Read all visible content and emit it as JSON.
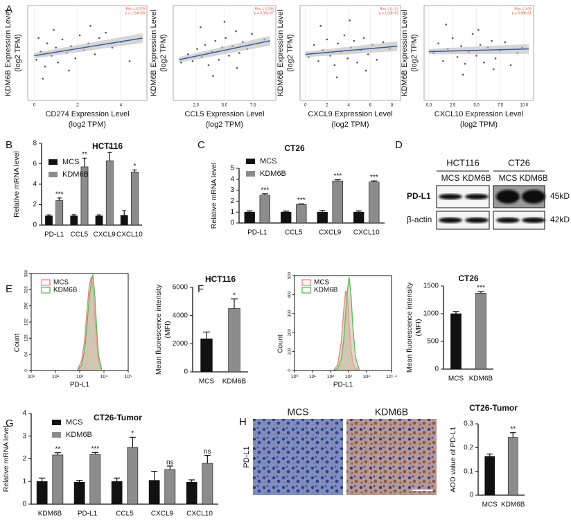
{
  "chart_data": [
    {
      "type": "scatter",
      "panel": "A",
      "xlabel": [
        "CD274 Expression Level",
        "(log2 TPM)"
      ],
      "ylabel": [
        "KDM6B Expression Level",
        "(log2 TPM)"
      ],
      "annotation": [
        "Rho = 0.278",
        "p = 1.24e-09"
      ],
      "xlim": [
        -0.3,
        5.2
      ],
      "xticks": [
        0,
        2,
        4
      ],
      "ylim": [
        0,
        7
      ],
      "color": "#3b5a9a",
      "point_color": "#555555",
      "x": [
        0.1,
        0.3,
        0.5,
        0.6,
        0.8,
        1.0,
        1.1,
        1.3,
        1.5,
        1.7,
        1.9,
        2.1,
        2.3,
        2.5,
        2.8,
        3.0,
        3.3,
        3.6,
        4.0,
        4.4,
        0.4,
        0.9,
        1.6,
        2.6,
        0.2
      ],
      "y": [
        3.0,
        3.6,
        2.5,
        4.2,
        3.3,
        3.9,
        2.8,
        4.5,
        3.5,
        4.0,
        3.1,
        4.8,
        3.7,
        4.2,
        3.4,
        4.6,
        5.0,
        3.9,
        4.3,
        2.9,
        1.6,
        5.2,
        2.2,
        5.5,
        4.6
      ],
      "fit": {
        "x": [
          0,
          5
        ],
        "y": [
          3.3,
          4.6
        ]
      }
    },
    {
      "type": "scatter",
      "xlabel": [
        "CCL5 Expression Level",
        "(log2 TPM)"
      ],
      "ylabel": [
        "KDM6B Expression Level",
        "(log2 TPM)"
      ],
      "annotation": [
        "Rho = 0.236",
        "p = 3.05e-07"
      ],
      "xlim": [
        0.5,
        9.5
      ],
      "xticks": [
        2.5,
        {
          "value": 5,
          "label": "5.0"
        },
        7.5
      ],
      "ylim": [
        0,
        7
      ],
      "color": "#3b5a9a",
      "point_color": "#555555",
      "x": [
        1.2,
        1.8,
        2.2,
        2.6,
        3.0,
        3.3,
        3.6,
        3.9,
        4.2,
        4.5,
        4.8,
        5.1,
        5.4,
        5.7,
        6.0,
        6.3,
        6.6,
        7.0,
        7.4,
        7.9,
        2.9,
        4.0,
        5.0,
        6.1,
        8.5
      ],
      "y": [
        2.8,
        3.4,
        2.9,
        3.8,
        3.2,
        4.1,
        2.6,
        3.6,
        4.4,
        3.0,
        3.9,
        4.6,
        3.3,
        4.0,
        5.1,
        3.5,
        4.3,
        3.8,
        4.9,
        4.2,
        5.4,
        1.8,
        5.8,
        2.4,
        4.5
      ],
      "fit": {
        "x": [
          1,
          9
        ],
        "y": [
          3.0,
          4.4
        ]
      }
    },
    {
      "type": "scatter",
      "xlabel": [
        "CXCL9 Expression Level",
        "(log2 TPM)"
      ],
      "ylabel": [
        "KDM6B Expression Level",
        "(log2 TPM)"
      ],
      "annotation": [
        "Rho = 0.113",
        "p = 1.03e-02"
      ],
      "xlim": [
        -0.5,
        8.8
      ],
      "xticks": [
        0,
        2,
        4,
        6,
        8
      ],
      "ylim": [
        0,
        7
      ],
      "color": "#3b5a9a",
      "point_color": "#555555",
      "x": [
        0.3,
        0.8,
        1.2,
        1.6,
        2.0,
        2.3,
        2.7,
        3.0,
        3.3,
        3.6,
        3.9,
        4.2,
        4.5,
        4.8,
        5.1,
        5.4,
        5.8,
        6.2,
        6.6,
        7.2,
        1.4,
        2.9,
        4.1,
        5.6,
        7.8
      ],
      "y": [
        3.2,
        4.1,
        2.9,
        3.7,
        4.5,
        3.3,
        2.6,
        4.2,
        3.6,
        4.8,
        3.1,
        3.9,
        4.4,
        2.8,
        3.7,
        4.6,
        3.4,
        4.1,
        3.0,
        4.3,
        5.5,
        1.7,
        5.9,
        2.2,
        3.8
      ],
      "fit": {
        "x": [
          0,
          8.5
        ],
        "y": [
          3.4,
          4.0
        ]
      }
    },
    {
      "type": "scatter",
      "xlabel": [
        "CXCL10 Expression Level",
        "(log2 TPM)"
      ],
      "ylabel": [
        "KDM6B Expression Level",
        "(log2 TPM)"
      ],
      "annotation": [
        "Rho = 0.06",
        "p = 5.99e-01"
      ],
      "xlim": [
        -0.5,
        11
      ],
      "xticks": [
        {
          "value": 0,
          "label": "0.0"
        },
        2.5,
        {
          "value": 5,
          "label": "5.0"
        },
        7.5,
        {
          "value": 10,
          "label": "10.0"
        }
      ],
      "ylim": [
        0,
        7
      ],
      "color": "#3b5a9a",
      "point_color": "#555555",
      "x": [
        0.5,
        1.0,
        1.5,
        2.0,
        2.5,
        3.0,
        3.4,
        3.8,
        4.2,
        4.6,
        5.0,
        5.4,
        5.8,
        6.2,
        6.6,
        7.0,
        7.5,
        8.0,
        8.6,
        9.3,
        1.8,
        3.6,
        5.2,
        6.8,
        9.8
      ],
      "y": [
        3.5,
        4.2,
        2.9,
        3.8,
        4.6,
        3.2,
        4.0,
        2.7,
        3.6,
        4.9,
        3.3,
        4.1,
        2.8,
        3.9,
        4.4,
        3.1,
        3.7,
        4.3,
        2.6,
        3.5,
        5.6,
        1.9,
        5.2,
        2.3,
        3.9
      ],
      "fit": {
        "x": [
          0,
          10.5
        ],
        "y": [
          3.6,
          3.8
        ]
      }
    },
    {
      "type": "bar",
      "panel": "B",
      "title": "HCT116",
      "ylabel": [
        "Relative mRNA level"
      ],
      "categories": [
        "PD-L1",
        "CCL5",
        "CXCL9",
        "CXCL10"
      ],
      "ylim": [
        0,
        8
      ],
      "yticks": [
        0,
        2,
        4,
        6,
        8
      ],
      "series": [
        {
          "name": "MCS",
          "color": "#111111",
          "values": [
            0.9,
            0.9,
            0.9,
            0.95
          ],
          "errors": [
            0.1,
            0.12,
            0.1,
            0.45
          ]
        },
        {
          "name": "KDM6B",
          "color": "#8c8c8c",
          "values": [
            2.4,
            5.7,
            6.3,
            5.2
          ],
          "errors": [
            0.25,
            0.85,
            0.8,
            0.2
          ]
        }
      ],
      "significance": [
        "***",
        "**",
        "*",
        "*"
      ]
    },
    {
      "type": "bar",
      "panel": "C",
      "title": "CT26",
      "ylabel": [
        "Relative mRNA level"
      ],
      "categories": [
        "PD-L1",
        "CCL5",
        "CXCL9",
        "CXCL10"
      ],
      "ylim": [
        0,
        5
      ],
      "yticks": [
        0,
        1,
        2,
        3,
        4,
        5
      ],
      "series": [
        {
          "name": "MCS",
          "color": "#111111",
          "values": [
            1,
            1,
            1,
            1
          ],
          "errors": [
            0.1,
            0.08,
            0.15,
            0.1
          ]
        },
        {
          "name": "KDM6B",
          "color": "#8c8c8c",
          "values": [
            2.55,
            1.7,
            3.85,
            3.75
          ],
          "errors": [
            0.12,
            0.05,
            0.1,
            0.1
          ]
        }
      ],
      "significance": [
        "***",
        "***",
        "***",
        "***"
      ]
    },
    {
      "type": "area",
      "panel": "E",
      "xlabel": "PD-L1",
      "ylabel": "Count",
      "log_x": true,
      "xlim": [
        10,
        100000
      ],
      "xticks": [
        {
          "value": 10,
          "label": "10¹"
        },
        {
          "value": 100,
          "label": "10²"
        },
        {
          "value": 1000,
          "label": "10³"
        },
        {
          "value": 10000,
          "label": "10⁴"
        },
        {
          "value": 100000,
          "label": "10⁵"
        }
      ],
      "ylim": [
        0,
        384
      ],
      "yticks": [
        0,
        64,
        128,
        192,
        256,
        320,
        384
      ],
      "x": [
        800,
        1200,
        1600,
        2000,
        2500,
        3000,
        3500,
        4200,
        5000,
        6000,
        8000
      ],
      "series": [
        {
          "name": "MCS",
          "color": "#f08080",
          "fill": "#c9b89c",
          "values": [
            0,
            40,
            120,
            240,
            340,
            370,
            330,
            220,
            110,
            40,
            0
          ]
        },
        {
          "name": "KDM6B",
          "color": "#5cb85c",
          "fill": "#c9b89c",
          "values": [
            0,
            20,
            80,
            180,
            290,
            350,
            380,
            300,
            170,
            60,
            5
          ]
        }
      ]
    },
    {
      "type": "bar",
      "title": "HCT116",
      "ylabel": [
        "Mean fluorescence intensity",
        "(MFI)"
      ],
      "categories": [
        "MCS",
        "KDM6B"
      ],
      "ylim": [
        0,
        6000
      ],
      "yticks": [
        0,
        2000,
        4000,
        6000
      ],
      "series": [
        {
          "colors": [
            "#111111",
            "#8c8c8c"
          ],
          "values": [
            2350,
            4500
          ],
          "errors": [
            480,
            680
          ]
        }
      ],
      "significance": [
        null,
        "*"
      ]
    },
    {
      "type": "area",
      "panel": "F",
      "xlabel": "PD-L1",
      "ylabel": "Count",
      "log_x": true,
      "xlim": [
        1,
        251189
      ],
      "xticks": [
        {
          "value": 1,
          "label": "10⁰"
        },
        {
          "value": 10,
          "label": "10¹"
        },
        {
          "value": 100,
          "label": "10²"
        },
        {
          "value": 1000,
          "label": "10³"
        },
        {
          "value": 10000,
          "label": "10⁴"
        },
        {
          "value": 251189,
          "label": "10⁵·⁴"
        }
      ],
      "ylim": [
        0,
        500
      ],
      "yticks": [
        0,
        100,
        200,
        300,
        400,
        500
      ],
      "x": [
        150,
        250,
        400,
        550,
        700,
        900,
        1100,
        1400,
        1800,
        2500,
        4000
      ],
      "series": [
        {
          "name": "MCS",
          "color": "#f08080",
          "fill": "#c9b89c",
          "values": [
            0,
            30,
            150,
            320,
            420,
            380,
            240,
            110,
            40,
            10,
            0
          ]
        },
        {
          "name": "KDM6B",
          "color": "#5cb85c",
          "fill": "#c9b89c",
          "values": [
            0,
            10,
            60,
            160,
            300,
            430,
            490,
            400,
            220,
            70,
            5
          ]
        }
      ]
    },
    {
      "type": "bar",
      "title": "CT26",
      "ylabel": [
        "Mean fluorescence intensity",
        "(MFI)"
      ],
      "categories": [
        "MCS",
        "KDM6B"
      ],
      "ylim": [
        0,
        1500
      ],
      "yticks": [
        0,
        500,
        1000,
        1500
      ],
      "series": [
        {
          "colors": [
            "#111111",
            "#8c8c8c"
          ],
          "values": [
            1000,
            1370
          ],
          "errors": [
            40,
            30
          ]
        }
      ],
      "significance": [
        null,
        "***"
      ]
    },
    {
      "type": "bar",
      "panel": "G",
      "title": "CT26-Tumor",
      "ylabel": [
        "Relative mRNA level"
      ],
      "categories": [
        "KDM6B",
        "PD-L1",
        "CCL5",
        "CXCL9",
        "CXCL10"
      ],
      "ylim": [
        0,
        4
      ],
      "yticks": [
        0,
        1,
        2,
        3,
        4
      ],
      "series": [
        {
          "name": "MCS",
          "color": "#111111",
          "values": [
            1.0,
            0.97,
            1.0,
            1.05,
            0.97
          ],
          "errors": [
            0.15,
            0.08,
            0.15,
            0.4,
            0.1
          ]
        },
        {
          "name": "KDM6B",
          "color": "#8c8c8c",
          "values": [
            2.17,
            2.2,
            2.5,
            1.53,
            1.8
          ],
          "errors": [
            0.1,
            0.08,
            0.45,
            0.15,
            0.35
          ]
        }
      ],
      "significance": [
        "**",
        "***",
        "*",
        "ns",
        "ns"
      ]
    },
    {
      "type": "bar",
      "title": "CT26-Tumor",
      "ylabel": [
        "AOD value of PD-L1"
      ],
      "categories": [
        "MCS",
        "KDM6B"
      ],
      "ylim": [
        0,
        0.3
      ],
      "yticks": [
        0,
        0.1,
        0.2,
        0.3
      ],
      "series": [
        {
          "colors": [
            "#111111",
            "#8c8c8c"
          ],
          "values": [
            0.163,
            0.243
          ],
          "errors": [
            0.01,
            0.02
          ]
        }
      ],
      "significance": [
        null,
        "**"
      ]
    }
  ],
  "blot": {
    "panel": "D",
    "groups": [
      "HCT116",
      "CT26"
    ],
    "lanes": [
      "MCS",
      "KDM6B",
      "MCS",
      "KDM6B"
    ],
    "rows": [
      {
        "label": "PD-L1",
        "size": "45kD"
      },
      {
        "label": "β-actin",
        "size": "42kD"
      }
    ]
  },
  "ihc": {
    "panel": "H",
    "columns": [
      "MCS",
      "KDM6B"
    ],
    "row_label": "PD-L1"
  }
}
